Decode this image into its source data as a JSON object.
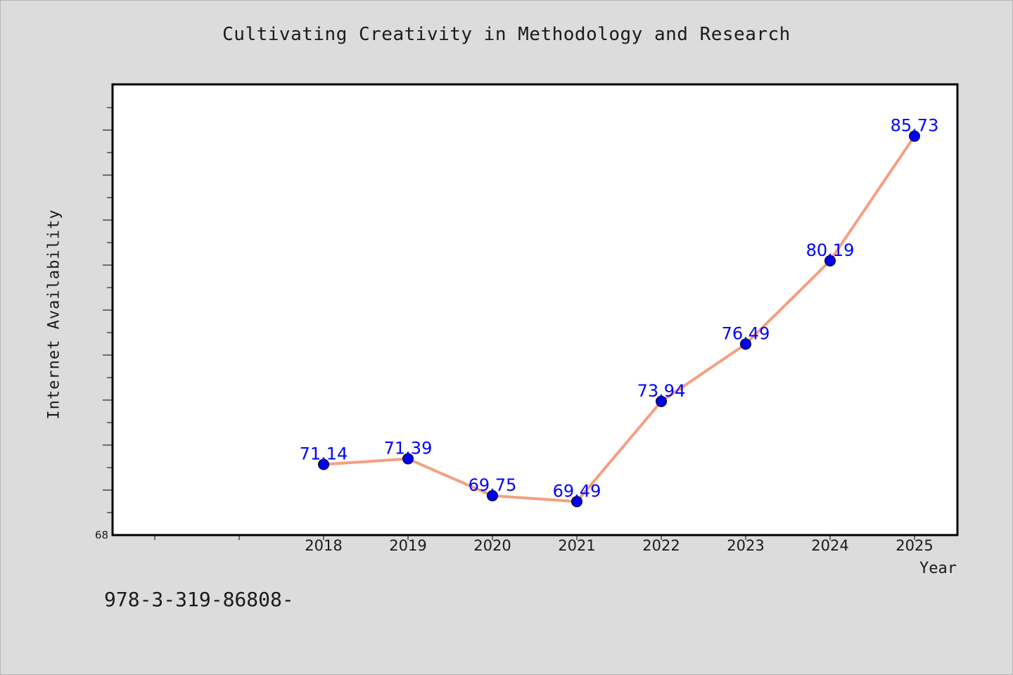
{
  "title": "Cultivating Creativity in Methodology and Research",
  "footer_text": "978-3-319-86808-",
  "chart_data": {
    "type": "line",
    "title": "Cultivating Creativity in Methodology and Research",
    "xlabel": "Year",
    "ylabel": "Internet Availability",
    "categories": [
      "2018",
      "2019",
      "2020",
      "2021",
      "2022",
      "2023",
      "2024",
      "2025"
    ],
    "series": [
      {
        "values": [
          71.14,
          71.39,
          69.75,
          69.49,
          73.94,
          76.49,
          80.19,
          85.73
        ],
        "data_labels": [
          "71.14",
          "71.39",
          "69.75",
          "69.49",
          "73.94",
          "76.49",
          "80.19",
          "85.73"
        ]
      }
    ],
    "y_tick_labels": [
      "68"
    ],
    "ylim": [
      68,
      88
    ],
    "grid": false,
    "legend": "none",
    "colors": {
      "line": "#f4a080",
      "marker": "#0000ee",
      "label": "#0000ff",
      "plot_background": "#ffffff",
      "page_background": "#dcdcdc"
    }
  }
}
